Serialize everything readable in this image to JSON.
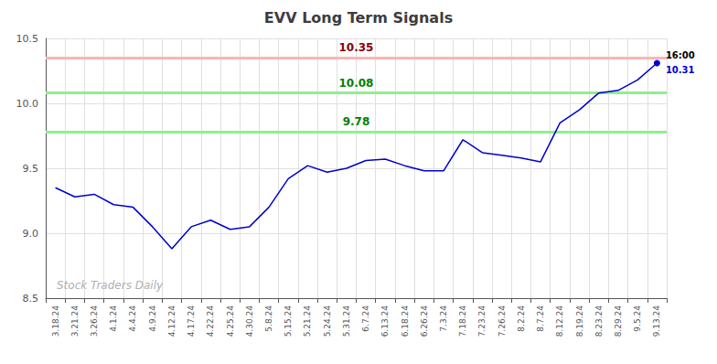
{
  "chart_data": {
    "type": "line",
    "title": "EVV Long Term Signals",
    "categories": [
      "3.18.24",
      "3.21.24",
      "3.26.24",
      "4.1.24",
      "4.4.24",
      "4.9.24",
      "4.12.24",
      "4.17.24",
      "4.22.24",
      "4.25.24",
      "4.30.24",
      "5.8.24",
      "5.15.24",
      "5.21.24",
      "5.24.24",
      "5.31.24",
      "6.7.24",
      "6.13.24",
      "6.18.24",
      "6.26.24",
      "7.3.24",
      "7.18.24",
      "7.23.24",
      "7.26.24",
      "8.2.24",
      "8.7.24",
      "8.12.24",
      "8.19.24",
      "8.23.24",
      "8.29.24",
      "9.5.24",
      "9.13.24"
    ],
    "values": [
      9.35,
      9.28,
      9.3,
      9.22,
      9.2,
      9.05,
      8.88,
      9.05,
      9.1,
      9.03,
      9.05,
      9.2,
      9.42,
      9.52,
      9.47,
      9.5,
      9.56,
      9.57,
      9.52,
      9.48,
      9.48,
      9.72,
      9.62,
      9.6,
      9.58,
      9.55,
      9.85,
      9.95,
      10.08,
      10.1,
      10.18,
      10.31
    ],
    "color": "#0000cc",
    "ylim": [
      8.5,
      10.5
    ],
    "yticks": [
      {
        "value": 8.5,
        "label": "8.5"
      },
      {
        "value": 9,
        "label": "9.0"
      },
      {
        "value": 9.5,
        "label": "9.5"
      },
      {
        "value": 10,
        "label": "10.0"
      },
      {
        "value": 10.5,
        "label": "10.5"
      }
    ],
    "grid": true,
    "hlines": [
      {
        "value": 10.35,
        "label": "10.35",
        "color": "#ffb3b3",
        "label_color": "darkred"
      },
      {
        "value": 10.08,
        "label": "10.08",
        "color": "#90ee90",
        "label_color": "green"
      },
      {
        "value": 9.78,
        "label": "9.78",
        "color": "#90ee90",
        "label_color": "green"
      }
    ],
    "annotations": [
      {
        "text": "16:00",
        "color": "black"
      },
      {
        "text": "10.31",
        "color": "#0000cc"
      }
    ],
    "watermark": "Stock Traders Daily"
  }
}
